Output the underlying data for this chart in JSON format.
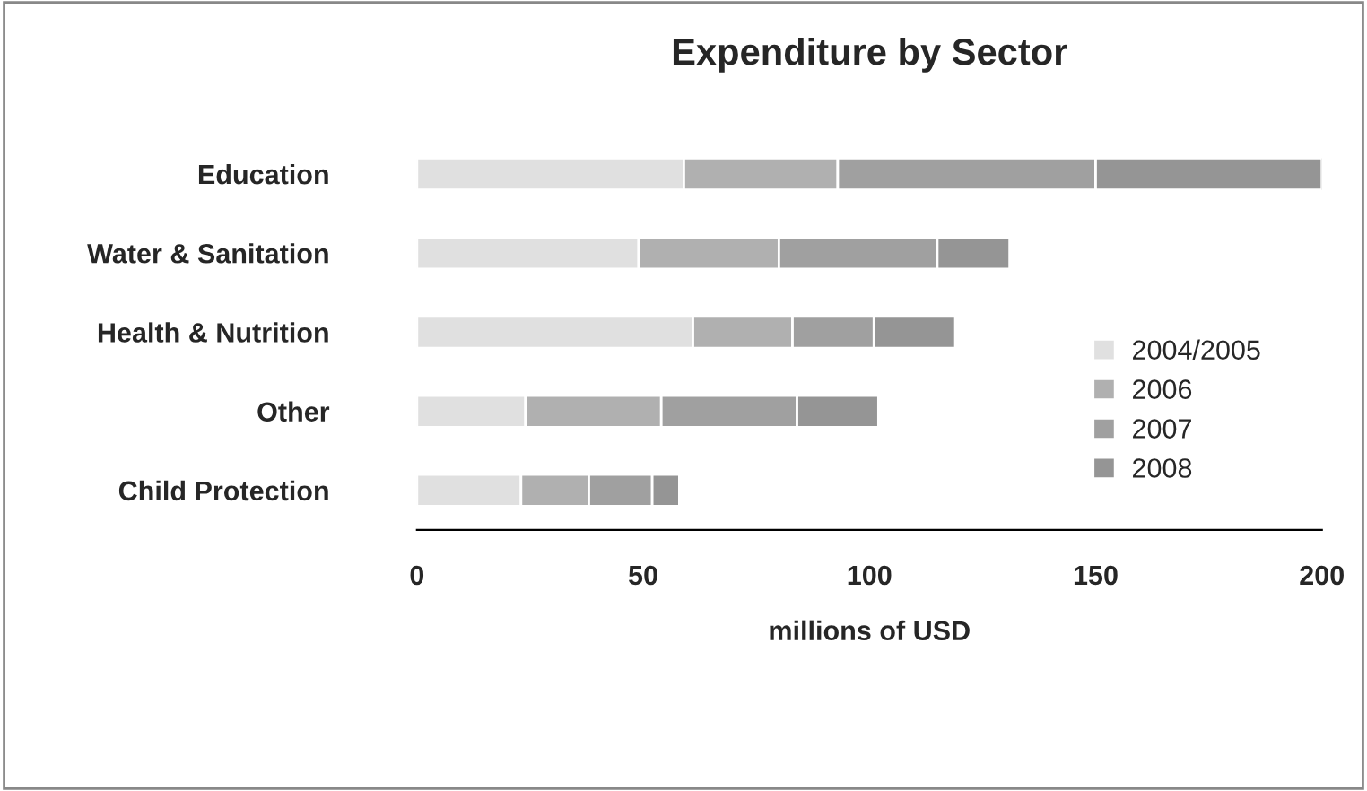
{
  "chart_data": {
    "type": "bar",
    "orientation": "horizontal",
    "stacked": true,
    "title": "Expenditure by Sector",
    "xlabel": "millions of USD",
    "categories": [
      "Education",
      "Water & Sanitation",
      "Health & Nutrition",
      "Other",
      "Child Protection"
    ],
    "series": [
      {
        "name": "2004/2005",
        "color": "#e0e0e0",
        "values": [
          59,
          49,
          61,
          24,
          23
        ]
      },
      {
        "name": "2006",
        "color": "#b0b0b0",
        "values": [
          34,
          31,
          22,
          30,
          15
        ]
      },
      {
        "name": "2007",
        "color": "#a0a0a0",
        "values": [
          57,
          35,
          18,
          30,
          14
        ]
      },
      {
        "name": "2008",
        "color": "#959595",
        "values": [
          50,
          16,
          18,
          18,
          6
        ]
      }
    ],
    "xlim": [
      0,
      200
    ],
    "xticks": [
      0,
      50,
      100,
      150,
      200
    ],
    "grid": false,
    "legend": "right"
  }
}
